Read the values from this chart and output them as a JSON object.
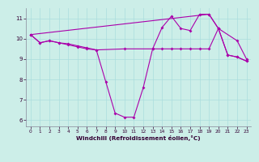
{
  "xlabel": "Windchill (Refroidissement éolien,°C)",
  "background_color": "#cceee8",
  "line_color": "#aa00aa",
  "grid_color": "#aadddd",
  "ylim": [
    5.7,
    11.5
  ],
  "xlim": [
    -0.5,
    23.5
  ],
  "yticks": [
    6,
    7,
    8,
    9,
    10,
    11
  ],
  "xticks": [
    0,
    1,
    2,
    3,
    4,
    5,
    6,
    7,
    8,
    9,
    10,
    11,
    12,
    13,
    14,
    15,
    16,
    17,
    18,
    19,
    20,
    21,
    22,
    23
  ],
  "series1_x": [
    0,
    1,
    2,
    3,
    4,
    5,
    6,
    7,
    8,
    9,
    10,
    11,
    12,
    13,
    14,
    15,
    16,
    17,
    18,
    19,
    20,
    21,
    22,
    23
  ],
  "series1_y": [
    10.2,
    9.8,
    9.9,
    9.8,
    9.7,
    9.6,
    9.5,
    9.45,
    7.9,
    6.35,
    6.15,
    6.15,
    7.6,
    9.5,
    10.55,
    11.1,
    10.5,
    10.4,
    11.2,
    11.2,
    10.5,
    9.2,
    9.1,
    8.9
  ],
  "series2_x": [
    0,
    19,
    20,
    22,
    23
  ],
  "series2_y": [
    10.2,
    11.2,
    10.5,
    9.9,
    9.0
  ],
  "series3_x": [
    0,
    1,
    2,
    3,
    4,
    5,
    6,
    7,
    10,
    13,
    14,
    15,
    16,
    17,
    18,
    19,
    20,
    21,
    22,
    23
  ],
  "series3_y": [
    10.2,
    9.8,
    9.9,
    9.8,
    9.75,
    9.65,
    9.55,
    9.45,
    9.5,
    9.5,
    9.5,
    9.5,
    9.5,
    9.5,
    9.5,
    9.5,
    10.5,
    9.2,
    9.1,
    8.9
  ]
}
